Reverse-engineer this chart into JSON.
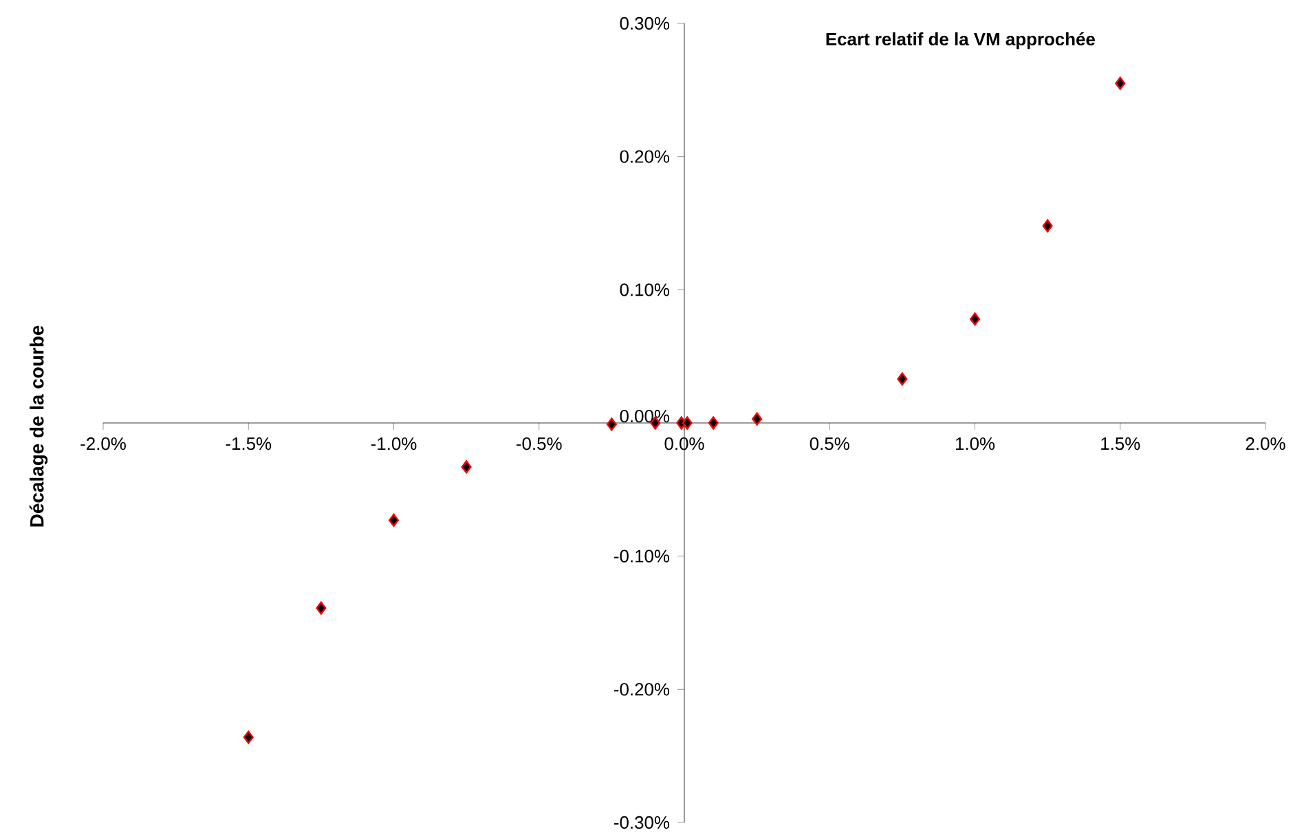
{
  "chart_data": {
    "type": "scatter",
    "title": "Ecart relatif de la VM approchée",
    "ylabel": "Décalage de la courbe",
    "x": [
      -1.5,
      -1.25,
      -1.0,
      -0.75,
      -0.25,
      -0.1,
      -0.01,
      0.01,
      0.1,
      0.25,
      0.75,
      1.0,
      1.25,
      1.5
    ],
    "series": [
      {
        "color": "#000000",
        "values": [
          -0.236,
          -0.139,
          -0.073,
          -0.033,
          -0.001,
          0.0,
          0.0,
          0.0,
          0.0,
          0.003,
          0.033,
          0.078,
          0.148,
          0.255
        ]
      }
    ],
    "marker": "diamond",
    "xlim": [
      -2.0,
      2.0
    ],
    "ylim": [
      -0.3,
      0.3
    ],
    "xticks": [
      {
        "value": -2.0,
        "label": "-2.0%"
      },
      {
        "value": -1.5,
        "label": "-1.5%"
      },
      {
        "value": -1.0,
        "label": "-1.0%"
      },
      {
        "value": -0.5,
        "label": "-0.5%"
      },
      {
        "value": 0.0,
        "label": "0.0%"
      },
      {
        "value": 0.5,
        "label": "0.5%"
      },
      {
        "value": 1.0,
        "label": "1.0%"
      },
      {
        "value": 1.5,
        "label": "1.5%"
      },
      {
        "value": 2.0,
        "label": "2.0%"
      }
    ],
    "yticks": [
      {
        "value": -0.3,
        "label": "-0.30%"
      },
      {
        "value": -0.2,
        "label": "-0.20%"
      },
      {
        "value": -0.1,
        "label": "-0.10%"
      },
      {
        "value": 0.0,
        "label": "0.00%"
      },
      {
        "value": 0.1,
        "label": "0.10%"
      },
      {
        "value": 0.2,
        "label": "0.20%"
      },
      {
        "value": 0.3,
        "label": "0.30%"
      }
    ]
  }
}
